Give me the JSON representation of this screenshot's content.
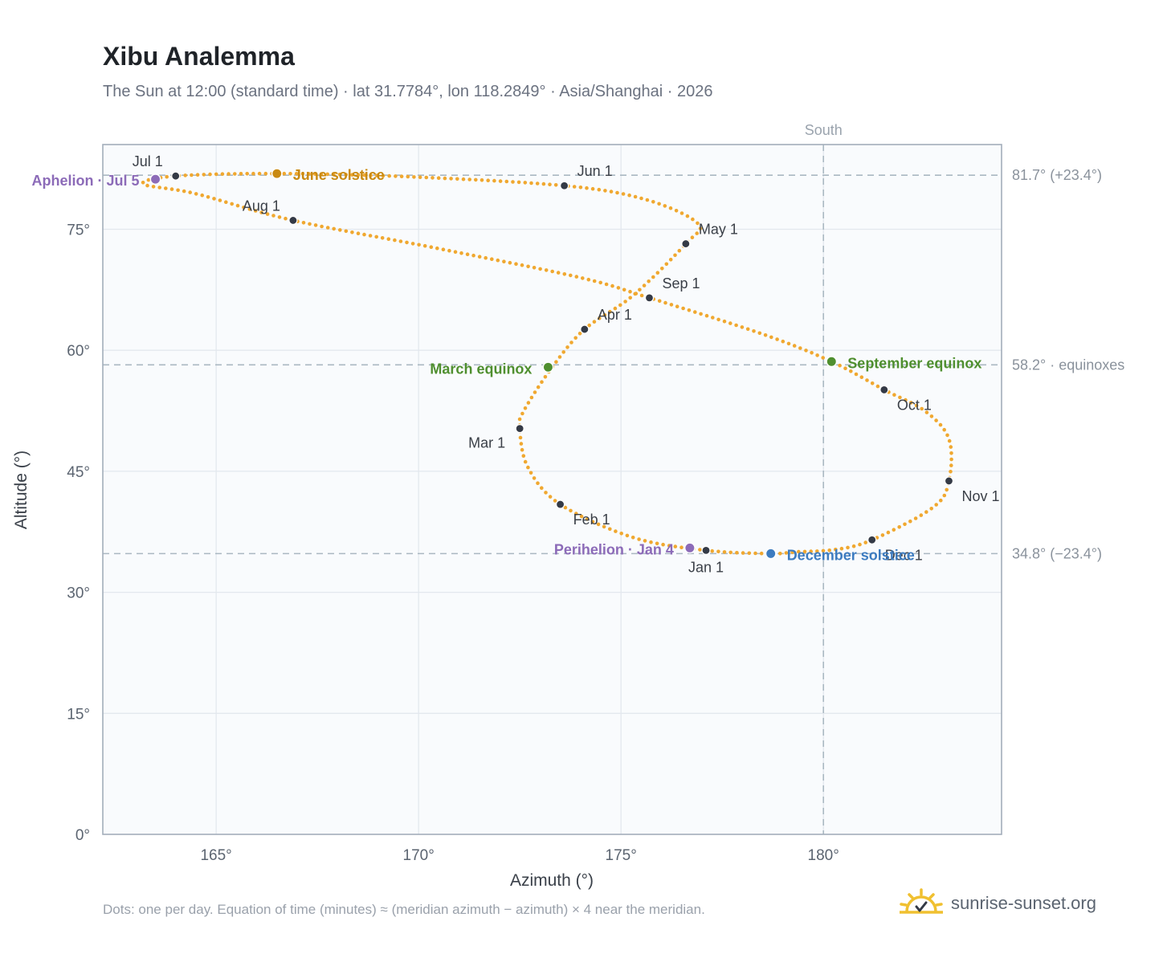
{
  "title": "Xibu Analemma",
  "subtitle": "The Sun at 12:00 (standard time) · lat 31.7784°, lon 118.2849° · Asia/Shanghai · 2026",
  "footnote": "Dots: one per day. Equation of time (minutes) ≈ (meridian azimuth − azimuth) × 4 near the meridian.",
  "brand": "sunrise-sunset.org",
  "colors": {
    "curve": "#f0a830",
    "month_dot": "#343a46",
    "aphelion_perihelion": "#8c6bb8",
    "june_solstice": "#c98a12",
    "december_solstice": "#3d7cc0",
    "equinox": "#4f8f2f",
    "reference": "#aab8c2",
    "grid": "#e3e8ee",
    "plot_bg": "#f9fbfd",
    "frame": "#a3aebb",
    "logo": "#f0c030"
  },
  "chart_data": {
    "type": "scatter",
    "xlabel": "Azimuth (°)",
    "ylabel": "Altitude (°)",
    "xlim": [
      162.2,
      184.4
    ],
    "ylim": [
      0,
      85.5
    ],
    "xticks": [
      165,
      170,
      175,
      180
    ],
    "xtick_labels": [
      "165°",
      "170°",
      "175°",
      "180°"
    ],
    "yticks": [
      0,
      15,
      30,
      45,
      60,
      75
    ],
    "ytick_labels": [
      "0°",
      "15°",
      "30°",
      "45°",
      "60°",
      "75°"
    ],
    "grid": true,
    "vertical_reference": {
      "x": 180,
      "label": "South"
    },
    "horizontal_references": [
      {
        "y": 81.7,
        "label": "81.7° (+23.4°)"
      },
      {
        "y": 58.2,
        "label": "58.2° · equinoxes"
      },
      {
        "y": 34.8,
        "label": "34.8° (−23.4°)"
      }
    ],
    "series": [
      {
        "kind": "daily",
        "points": [
          [
            177.1,
            35.2
          ],
          [
            175.3,
            36.8
          ],
          [
            173.5,
            40.9
          ],
          [
            172.7,
            45.5
          ],
          [
            172.5,
            50.3
          ],
          [
            172.6,
            52.5
          ],
          [
            173.3,
            57.9
          ],
          [
            174.1,
            62.6
          ],
          [
            175.3,
            66.8
          ],
          [
            176.6,
            73.2
          ],
          [
            176.9,
            75.7
          ],
          [
            175.6,
            78.7
          ],
          [
            173.6,
            80.4
          ],
          [
            169.8,
            81.5
          ],
          [
            166.5,
            81.9
          ],
          [
            164.0,
            81.6
          ],
          [
            163.2,
            80.6
          ],
          [
            164.5,
            79.4
          ],
          [
            166.9,
            76.1
          ],
          [
            170.5,
            72.6
          ],
          [
            174.0,
            69.0
          ],
          [
            175.7,
            66.5
          ],
          [
            178.5,
            62.0
          ],
          [
            180.2,
            58.6
          ],
          [
            181.5,
            55.1
          ],
          [
            182.5,
            52.5
          ],
          [
            183.1,
            49.0
          ],
          [
            183.1,
            43.8
          ],
          [
            182.7,
            40.5
          ],
          [
            181.2,
            36.5
          ],
          [
            180.3,
            35.3
          ],
          [
            179.3,
            35.0
          ],
          [
            178.7,
            34.8
          ],
          [
            177.1,
            35.2
          ]
        ]
      }
    ],
    "month_markers": [
      {
        "label": "Jan 1",
        "x": 177.1,
        "y": 35.2,
        "anchor": "below"
      },
      {
        "label": "Feb 1",
        "x": 173.5,
        "y": 40.9,
        "anchor": "below-right"
      },
      {
        "label": "Mar 1",
        "x": 172.5,
        "y": 50.3,
        "anchor": "below-left"
      },
      {
        "label": "Apr 1",
        "x": 174.1,
        "y": 62.6,
        "anchor": "above-right"
      },
      {
        "label": "May 1",
        "x": 176.6,
        "y": 73.2,
        "anchor": "above-right"
      },
      {
        "label": "Jun 1",
        "x": 173.6,
        "y": 80.4,
        "anchor": "above-right"
      },
      {
        "label": "Jul 1",
        "x": 164.0,
        "y": 81.6,
        "anchor": "above-left"
      },
      {
        "label": "Aug 1",
        "x": 166.9,
        "y": 76.1,
        "anchor": "above-left"
      },
      {
        "label": "Sep 1",
        "x": 175.7,
        "y": 66.5,
        "anchor": "above-right"
      },
      {
        "label": "Oct 1",
        "x": 181.5,
        "y": 55.1,
        "anchor": "below-right"
      },
      {
        "label": "Nov 1",
        "x": 183.1,
        "y": 43.8,
        "anchor": "below-right"
      },
      {
        "label": "Dec 1",
        "x": 181.2,
        "y": 36.5,
        "anchor": "below-right"
      }
    ],
    "events": [
      {
        "label": "June solstice",
        "x": 166.5,
        "y": 81.9,
        "color_key": "june_solstice",
        "anchor": "right"
      },
      {
        "label": "December solstice",
        "x": 178.7,
        "y": 34.8,
        "color_key": "december_solstice",
        "anchor": "right"
      },
      {
        "label": "March equinox",
        "x": 173.2,
        "y": 57.9,
        "color_key": "equinox",
        "anchor": "left"
      },
      {
        "label": "September equinox",
        "x": 180.2,
        "y": 58.6,
        "color_key": "equinox",
        "anchor": "right"
      },
      {
        "label": "Aphelion · Jul 5",
        "x": 163.5,
        "y": 81.2,
        "color_key": "aphelion_perihelion",
        "anchor": "left"
      },
      {
        "label": "Perihelion · Jan 4",
        "x": 176.7,
        "y": 35.5,
        "color_key": "aphelion_perihelion",
        "anchor": "left"
      }
    ]
  }
}
